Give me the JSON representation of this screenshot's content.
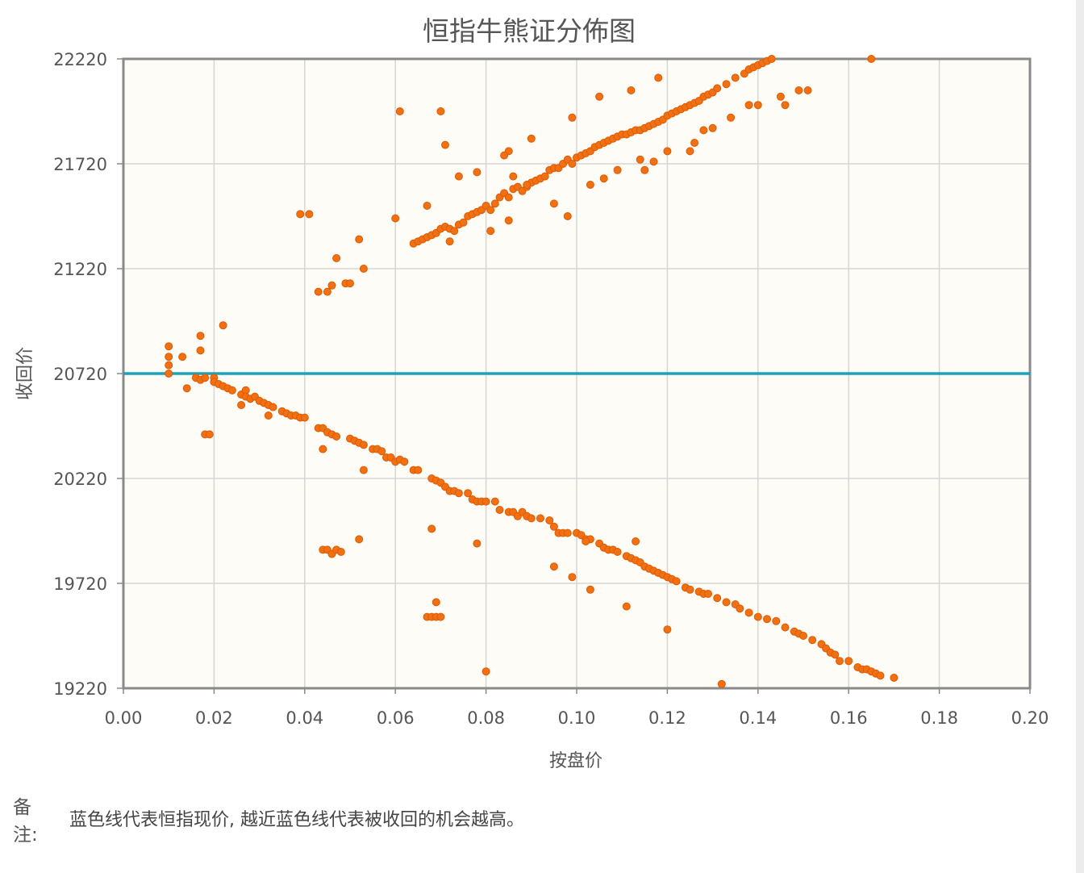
{
  "chart_data": {
    "type": "scatter",
    "title": "恒指牛熊证分佈图",
    "xlabel": "按盘价",
    "ylabel": "收回价",
    "xlim": [
      0,
      0.2
    ],
    "ylim": [
      19220,
      22220
    ],
    "x_ticks": [
      "0.00",
      "0.02",
      "0.04",
      "0.06",
      "0.08",
      "0.10",
      "0.12",
      "0.14",
      "0.16",
      "0.18",
      "0.20"
    ],
    "y_ticks": [
      "19220",
      "19720",
      "20220",
      "20720",
      "21220",
      "21720",
      "22220"
    ],
    "reference_line": {
      "y": 20720,
      "color": "#1aa3b8"
    },
    "point_color": "#f07014",
    "grid": true,
    "background": "#fdfcf6",
    "series": [
      {
        "points": [
          [
            0.01,
            20720
          ],
          [
            0.01,
            20760
          ],
          [
            0.01,
            20800
          ],
          [
            0.01,
            20850
          ],
          [
            0.013,
            20800
          ],
          [
            0.017,
            20900
          ],
          [
            0.017,
            20830
          ],
          [
            0.022,
            20950
          ],
          [
            0.014,
            20650
          ],
          [
            0.016,
            20700
          ],
          [
            0.017,
            20690
          ],
          [
            0.018,
            20700
          ],
          [
            0.02,
            20700
          ],
          [
            0.02,
            20680
          ],
          [
            0.021,
            20670
          ],
          [
            0.022,
            20660
          ],
          [
            0.023,
            20650
          ],
          [
            0.024,
            20640
          ],
          [
            0.026,
            20620
          ],
          [
            0.027,
            20640
          ],
          [
            0.026,
            20570
          ],
          [
            0.027,
            20610
          ],
          [
            0.028,
            20600
          ],
          [
            0.029,
            20610
          ],
          [
            0.03,
            20590
          ],
          [
            0.031,
            20580
          ],
          [
            0.032,
            20570
          ],
          [
            0.033,
            20560
          ],
          [
            0.032,
            20520
          ],
          [
            0.035,
            20540
          ],
          [
            0.036,
            20530
          ],
          [
            0.037,
            20520
          ],
          [
            0.038,
            20520
          ],
          [
            0.039,
            20510
          ],
          [
            0.04,
            20510
          ],
          [
            0.018,
            20430
          ],
          [
            0.019,
            20430
          ],
          [
            0.043,
            20460
          ],
          [
            0.044,
            20460
          ],
          [
            0.045,
            20440
          ],
          [
            0.046,
            20430
          ],
          [
            0.047,
            20420
          ],
          [
            0.044,
            20360
          ],
          [
            0.05,
            20410
          ],
          [
            0.051,
            20400
          ],
          [
            0.052,
            20390
          ],
          [
            0.053,
            20380
          ],
          [
            0.055,
            20360
          ],
          [
            0.056,
            20360
          ],
          [
            0.057,
            20350
          ],
          [
            0.058,
            20320
          ],
          [
            0.059,
            20320
          ],
          [
            0.06,
            20300
          ],
          [
            0.061,
            20310
          ],
          [
            0.062,
            20300
          ],
          [
            0.053,
            20260
          ],
          [
            0.064,
            20260
          ],
          [
            0.065,
            20260
          ],
          [
            0.068,
            20220
          ],
          [
            0.069,
            20210
          ],
          [
            0.07,
            20200
          ],
          [
            0.071,
            20180
          ],
          [
            0.072,
            20160
          ],
          [
            0.073,
            20160
          ],
          [
            0.074,
            20150
          ],
          [
            0.076,
            20150
          ],
          [
            0.077,
            20120
          ],
          [
            0.078,
            20110
          ],
          [
            0.079,
            20110
          ],
          [
            0.08,
            20110
          ],
          [
            0.082,
            20110
          ],
          [
            0.083,
            20070
          ],
          [
            0.085,
            20060
          ],
          [
            0.086,
            20060
          ],
          [
            0.087,
            20040
          ],
          [
            0.088,
            20060
          ],
          [
            0.089,
            20040
          ],
          [
            0.09,
            20030
          ],
          [
            0.092,
            20030
          ],
          [
            0.094,
            20020
          ],
          [
            0.095,
            19990
          ],
          [
            0.096,
            19960
          ],
          [
            0.097,
            19960
          ],
          [
            0.098,
            19960
          ],
          [
            0.1,
            19960
          ],
          [
            0.101,
            19950
          ],
          [
            0.102,
            19930
          ],
          [
            0.103,
            19930
          ],
          [
            0.105,
            19910
          ],
          [
            0.106,
            19890
          ],
          [
            0.107,
            19880
          ],
          [
            0.108,
            19880
          ],
          [
            0.109,
            19870
          ],
          [
            0.111,
            19850
          ],
          [
            0.112,
            19840
          ],
          [
            0.113,
            19830
          ],
          [
            0.114,
            19820
          ],
          [
            0.115,
            19800
          ],
          [
            0.116,
            19790
          ],
          [
            0.117,
            19780
          ],
          [
            0.118,
            19770
          ],
          [
            0.119,
            19760
          ],
          [
            0.12,
            19750
          ],
          [
            0.121,
            19740
          ],
          [
            0.122,
            19730
          ],
          [
            0.124,
            19700
          ],
          [
            0.125,
            19690
          ],
          [
            0.127,
            19680
          ],
          [
            0.128,
            19670
          ],
          [
            0.129,
            19670
          ],
          [
            0.131,
            19650
          ],
          [
            0.133,
            19630
          ],
          [
            0.135,
            19620
          ],
          [
            0.136,
            19600
          ],
          [
            0.138,
            19580
          ],
          [
            0.14,
            19560
          ],
          [
            0.142,
            19550
          ],
          [
            0.144,
            19540
          ],
          [
            0.146,
            19510
          ],
          [
            0.148,
            19490
          ],
          [
            0.149,
            19480
          ],
          [
            0.15,
            19470
          ],
          [
            0.152,
            19450
          ],
          [
            0.154,
            19430
          ],
          [
            0.155,
            19410
          ],
          [
            0.156,
            19390
          ],
          [
            0.157,
            19380
          ],
          [
            0.158,
            19350
          ],
          [
            0.16,
            19350
          ],
          [
            0.162,
            19320
          ],
          [
            0.163,
            19310
          ],
          [
            0.164,
            19310
          ],
          [
            0.165,
            19300
          ],
          [
            0.166,
            19290
          ],
          [
            0.167,
            19280
          ],
          [
            0.17,
            19270
          ],
          [
            0.044,
            19880
          ],
          [
            0.045,
            19880
          ],
          [
            0.046,
            19860
          ],
          [
            0.047,
            19880
          ],
          [
            0.048,
            19870
          ],
          [
            0.052,
            19930
          ],
          [
            0.068,
            19980
          ],
          [
            0.078,
            19910
          ],
          [
            0.095,
            19800
          ],
          [
            0.099,
            19750
          ],
          [
            0.103,
            19690
          ],
          [
            0.111,
            19610
          ],
          [
            0.12,
            19500
          ],
          [
            0.132,
            19240
          ],
          [
            0.08,
            19300
          ],
          [
            0.067,
            19560
          ],
          [
            0.068,
            19560
          ],
          [
            0.069,
            19560
          ],
          [
            0.07,
            19560
          ],
          [
            0.069,
            19630
          ],
          [
            0.102,
            19920
          ],
          [
            0.113,
            19920
          ]
        ]
      },
      {
        "points": [
          [
            0.039,
            21480
          ],
          [
            0.041,
            21480
          ],
          [
            0.043,
            21110
          ],
          [
            0.045,
            21110
          ],
          [
            0.046,
            21140
          ],
          [
            0.047,
            21270
          ],
          [
            0.049,
            21150
          ],
          [
            0.05,
            21150
          ],
          [
            0.052,
            21360
          ],
          [
            0.053,
            21220
          ],
          [
            0.06,
            21460
          ],
          [
            0.061,
            21970
          ],
          [
            0.07,
            21970
          ],
          [
            0.071,
            21810
          ],
          [
            0.064,
            21340
          ],
          [
            0.065,
            21350
          ],
          [
            0.066,
            21360
          ],
          [
            0.067,
            21370
          ],
          [
            0.068,
            21380
          ],
          [
            0.069,
            21390
          ],
          [
            0.07,
            21410
          ],
          [
            0.071,
            21420
          ],
          [
            0.072,
            21410
          ],
          [
            0.073,
            21400
          ],
          [
            0.074,
            21430
          ],
          [
            0.075,
            21440
          ],
          [
            0.076,
            21470
          ],
          [
            0.077,
            21480
          ],
          [
            0.078,
            21490
          ],
          [
            0.079,
            21500
          ],
          [
            0.08,
            21520
          ],
          [
            0.081,
            21500
          ],
          [
            0.082,
            21530
          ],
          [
            0.083,
            21560
          ],
          [
            0.084,
            21580
          ],
          [
            0.085,
            21560
          ],
          [
            0.086,
            21600
          ],
          [
            0.087,
            21610
          ],
          [
            0.088,
            21590
          ],
          [
            0.089,
            21610
          ],
          [
            0.09,
            21630
          ],
          [
            0.091,
            21640
          ],
          [
            0.092,
            21650
          ],
          [
            0.093,
            21660
          ],
          [
            0.094,
            21690
          ],
          [
            0.095,
            21700
          ],
          [
            0.096,
            21700
          ],
          [
            0.097,
            21720
          ],
          [
            0.098,
            21740
          ],
          [
            0.099,
            21720
          ],
          [
            0.1,
            21750
          ],
          [
            0.101,
            21760
          ],
          [
            0.102,
            21770
          ],
          [
            0.103,
            21780
          ],
          [
            0.104,
            21800
          ],
          [
            0.105,
            21810
          ],
          [
            0.106,
            21820
          ],
          [
            0.107,
            21830
          ],
          [
            0.108,
            21840
          ],
          [
            0.109,
            21850
          ],
          [
            0.11,
            21860
          ],
          [
            0.111,
            21860
          ],
          [
            0.112,
            21870
          ],
          [
            0.113,
            21880
          ],
          [
            0.114,
            21880
          ],
          [
            0.115,
            21890
          ],
          [
            0.116,
            21900
          ],
          [
            0.117,
            21910
          ],
          [
            0.118,
            21920
          ],
          [
            0.119,
            21930
          ],
          [
            0.12,
            21950
          ],
          [
            0.121,
            21960
          ],
          [
            0.122,
            21970
          ],
          [
            0.123,
            21980
          ],
          [
            0.124,
            21990
          ],
          [
            0.125,
            22000
          ],
          [
            0.126,
            22010
          ],
          [
            0.127,
            22020
          ],
          [
            0.128,
            22040
          ],
          [
            0.129,
            22050
          ],
          [
            0.13,
            22060
          ],
          [
            0.131,
            22080
          ],
          [
            0.133,
            22100
          ],
          [
            0.135,
            22130
          ],
          [
            0.137,
            22150
          ],
          [
            0.138,
            22170
          ],
          [
            0.139,
            22180
          ],
          [
            0.14,
            22190
          ],
          [
            0.141,
            22200
          ],
          [
            0.142,
            22210
          ],
          [
            0.143,
            22220
          ],
          [
            0.145,
            22040
          ],
          [
            0.146,
            22000
          ],
          [
            0.149,
            22070
          ],
          [
            0.151,
            22070
          ],
          [
            0.14,
            22000
          ],
          [
            0.138,
            22000
          ],
          [
            0.134,
            21940
          ],
          [
            0.13,
            21890
          ],
          [
            0.128,
            21880
          ],
          [
            0.126,
            21820
          ],
          [
            0.125,
            21780
          ],
          [
            0.12,
            21780
          ],
          [
            0.117,
            21730
          ],
          [
            0.115,
            21690
          ],
          [
            0.114,
            21740
          ],
          [
            0.109,
            21690
          ],
          [
            0.106,
            21650
          ],
          [
            0.103,
            21620
          ],
          [
            0.099,
            21940
          ],
          [
            0.098,
            21470
          ],
          [
            0.095,
            21530
          ],
          [
            0.085,
            21450
          ],
          [
            0.081,
            21400
          ],
          [
            0.078,
            21680
          ],
          [
            0.074,
            21660
          ],
          [
            0.072,
            21350
          ],
          [
            0.067,
            21520
          ],
          [
            0.086,
            21660
          ],
          [
            0.089,
            21620
          ],
          [
            0.118,
            22130
          ],
          [
            0.112,
            22070
          ],
          [
            0.105,
            22040
          ],
          [
            0.09,
            21840
          ],
          [
            0.085,
            21780
          ],
          [
            0.084,
            21760
          ],
          [
            0.165,
            22220
          ]
        ]
      }
    ]
  },
  "note": {
    "label": "备注:",
    "text": "蓝色线代表恒指现价, 越近蓝色线代表被收回的机会越高。"
  }
}
